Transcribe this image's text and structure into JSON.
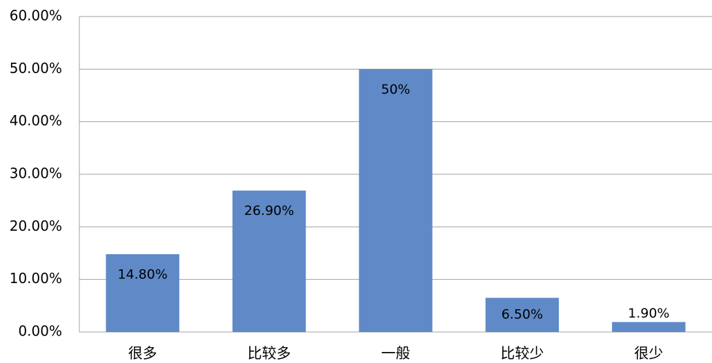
{
  "chart_data": {
    "type": "bar",
    "categories": [
      "很多",
      "比较多",
      "一般",
      "比较少",
      "很少"
    ],
    "values": [
      14.8,
      26.9,
      50,
      6.5,
      1.9
    ],
    "value_labels": [
      "14.80%",
      "26.90%",
      "50%",
      "6.50%",
      "1.90%"
    ],
    "color": "#5f8ac7",
    "ylim": [
      0,
      60
    ],
    "yticks": [
      {
        "value": 0,
        "label": "0.00%"
      },
      {
        "value": 10,
        "label": "10.00%"
      },
      {
        "value": 20,
        "label": "20.00%"
      },
      {
        "value": 30,
        "label": "30.00%"
      },
      {
        "value": 40,
        "label": "40.00%"
      },
      {
        "value": 50,
        "label": "50.00%"
      },
      {
        "value": 60,
        "label": "60.00%"
      }
    ],
    "grid": true
  }
}
